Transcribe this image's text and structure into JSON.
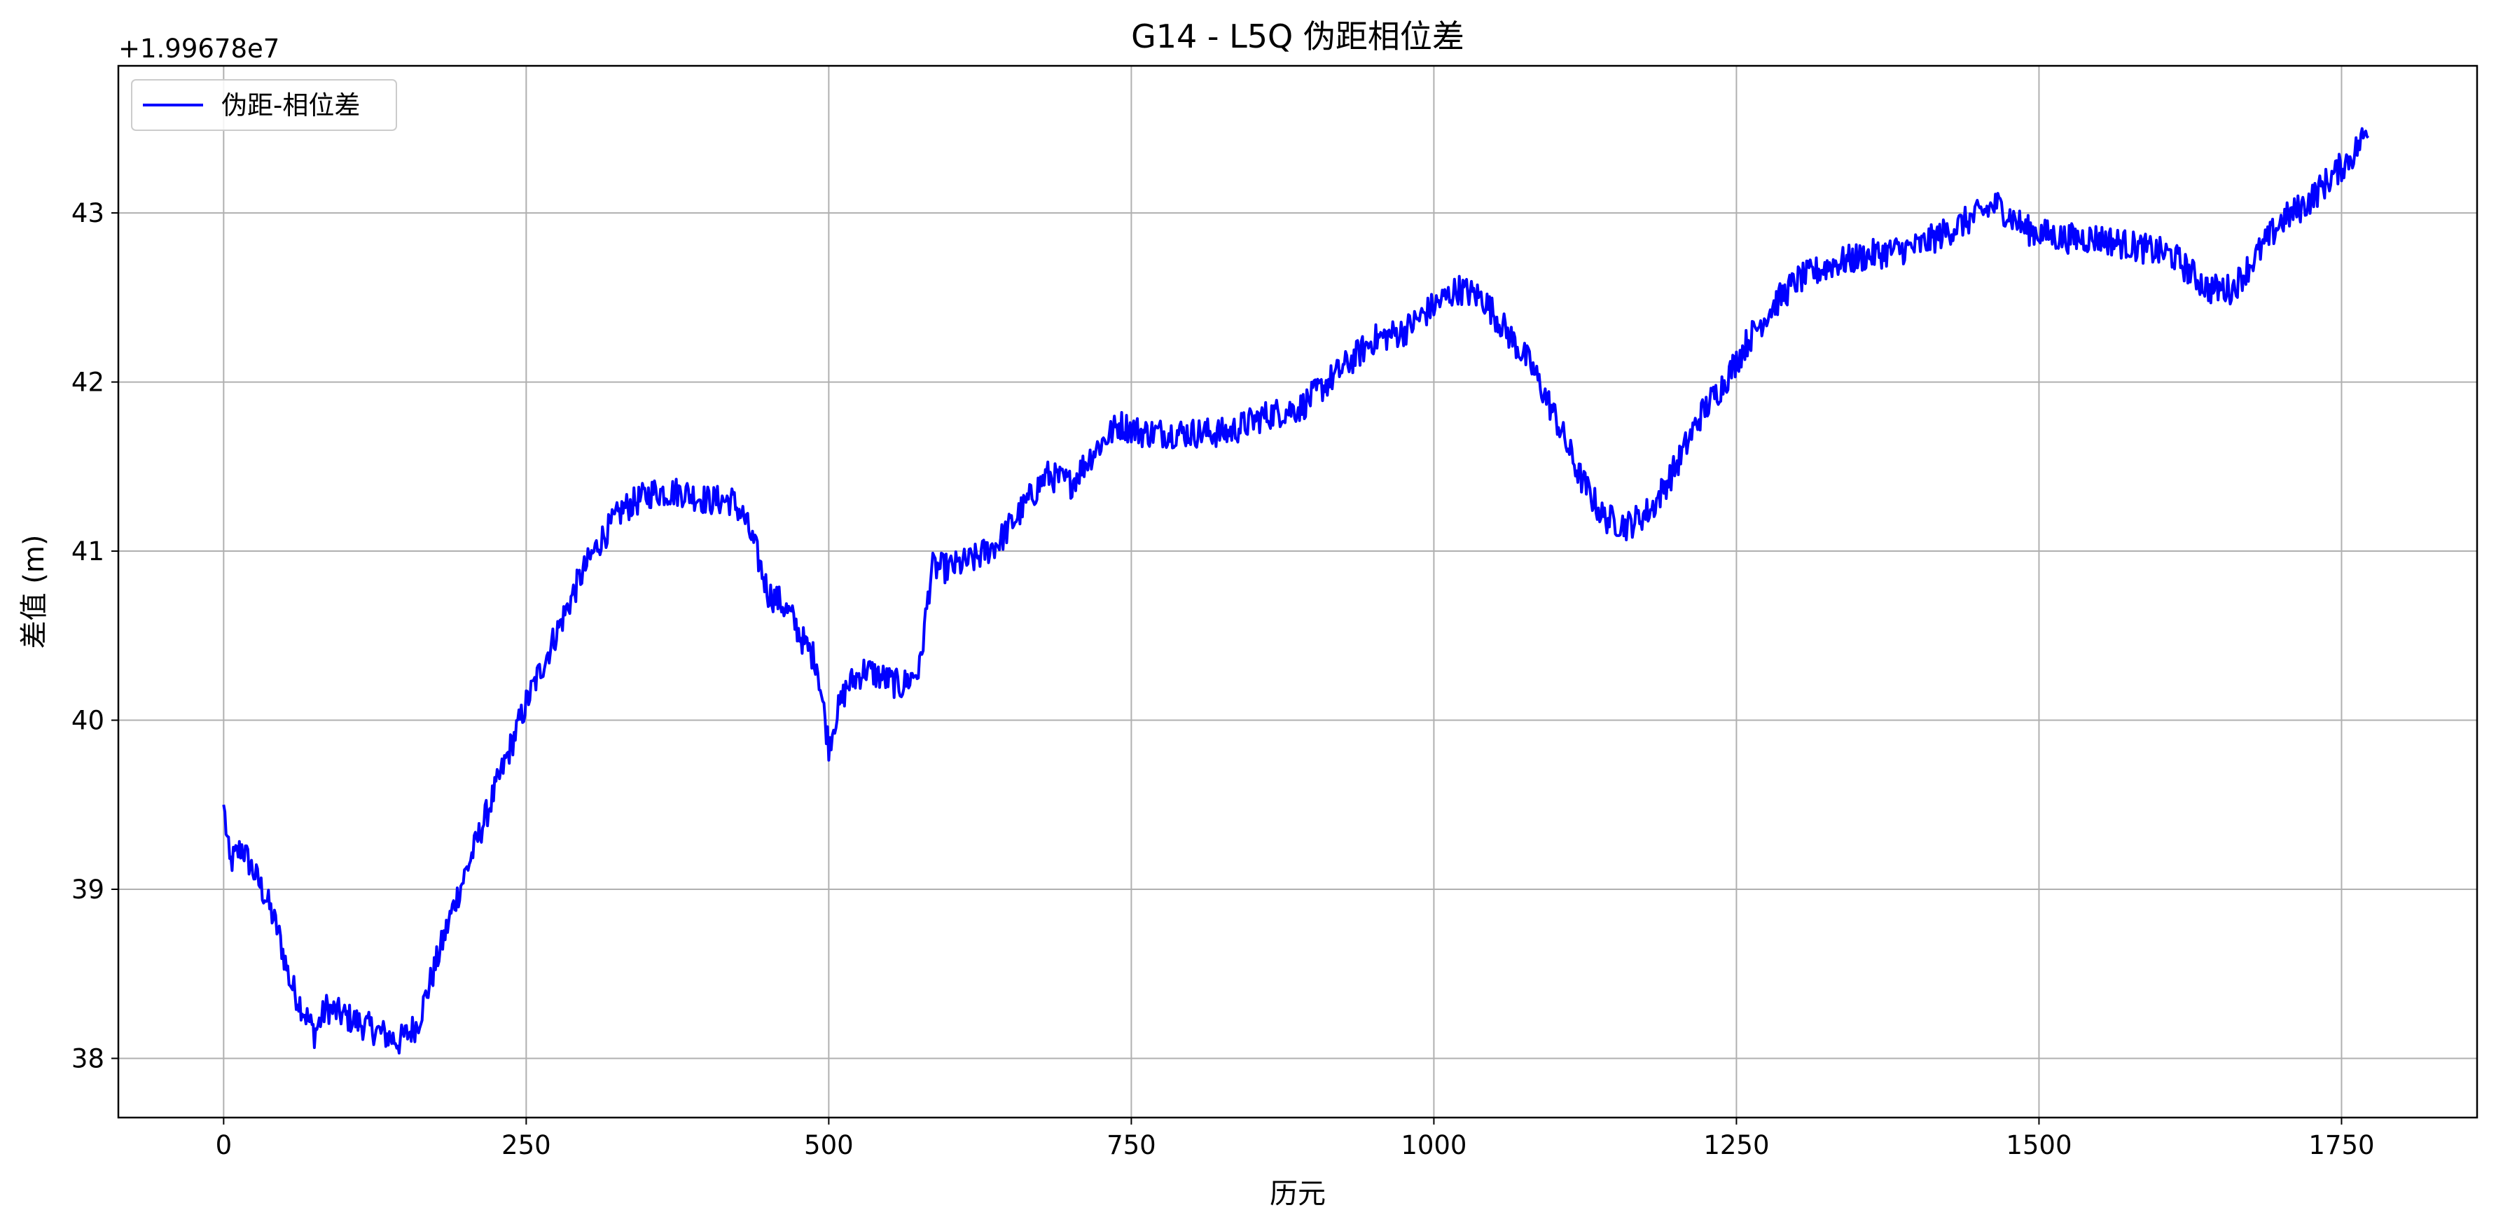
{
  "chart_data": {
    "type": "line",
    "title": "G14 - L5Q 伪距相位差",
    "xlabel": "历元",
    "ylabel": "差值 (m)",
    "y_offset_label": "+1.99678e7",
    "xlim": [
      -87,
      1862
    ],
    "ylim": [
      37.65,
      43.87
    ],
    "x_ticks": [
      0,
      250,
      500,
      750,
      1000,
      1250,
      1500,
      1750
    ],
    "x_tick_labels": [
      "0",
      "250",
      "500",
      "750",
      "1000",
      "1250",
      "1500",
      "1750"
    ],
    "y_ticks": [
      38,
      39,
      40,
      41,
      42,
      43
    ],
    "y_tick_labels": [
      "38",
      "39",
      "40",
      "41",
      "42",
      "43"
    ],
    "grid": true,
    "legend": {
      "position": "top-left",
      "entries": [
        {
          "label": "伪距-相位差",
          "color": "#0000ff"
        }
      ]
    },
    "series": [
      {
        "name": "伪距-相位差",
        "color": "#0000ff",
        "noise": 0.09,
        "x": [
          0,
          5,
          15,
          25,
          35,
          45,
          55,
          65,
          75,
          85,
          100,
          115,
          130,
          145,
          160,
          175,
          190,
          205,
          220,
          235,
          250,
          265,
          280,
          295,
          310,
          330,
          355,
          380,
          400,
          420,
          430,
          440,
          450,
          460,
          470,
          480,
          490,
          500,
          505,
          515,
          530,
          545,
          560,
          575,
          585,
          600,
          620,
          640,
          660,
          680,
          700,
          720,
          740,
          760,
          780,
          800,
          830,
          860,
          890,
          920,
          950,
          975,
          1000,
          1020,
          1040,
          1060,
          1080,
          1100,
          1120,
          1140,
          1160,
          1180,
          1200,
          1220,
          1240,
          1260,
          1280,
          1300,
          1330,
          1360,
          1400,
          1440,
          1465,
          1490,
          1520,
          1550,
          1580,
          1610,
          1640,
          1660,
          1680,
          1700,
          1720,
          1740,
          1760,
          1772
        ],
        "y": [
          39.5,
          39.15,
          39.25,
          39.1,
          38.95,
          38.75,
          38.45,
          38.3,
          38.15,
          38.3,
          38.25,
          38.2,
          38.15,
          38.1,
          38.2,
          38.55,
          38.9,
          39.2,
          39.5,
          39.8,
          40.1,
          40.35,
          40.6,
          40.85,
          41.05,
          41.25,
          41.35,
          41.35,
          41.3,
          41.3,
          41.2,
          41.0,
          40.75,
          40.7,
          40.6,
          40.45,
          40.35,
          39.85,
          40.0,
          40.2,
          40.3,
          40.25,
          40.2,
          40.3,
          40.9,
          40.9,
          40.95,
          41.05,
          41.25,
          41.45,
          41.4,
          41.6,
          41.75,
          41.7,
          41.7,
          41.7,
          41.7,
          41.8,
          41.85,
          42.05,
          42.25,
          42.3,
          42.45,
          42.55,
          42.5,
          42.3,
          42.1,
          41.8,
          41.45,
          41.2,
          41.15,
          41.25,
          41.5,
          41.8,
          42.0,
          42.25,
          42.45,
          42.6,
          42.7,
          42.75,
          42.8,
          42.95,
          43.05,
          42.9,
          42.85,
          42.85,
          42.8,
          42.75,
          42.55,
          42.55,
          42.75,
          42.95,
          43.05,
          43.2,
          43.35,
          43.5
        ]
      }
    ]
  }
}
